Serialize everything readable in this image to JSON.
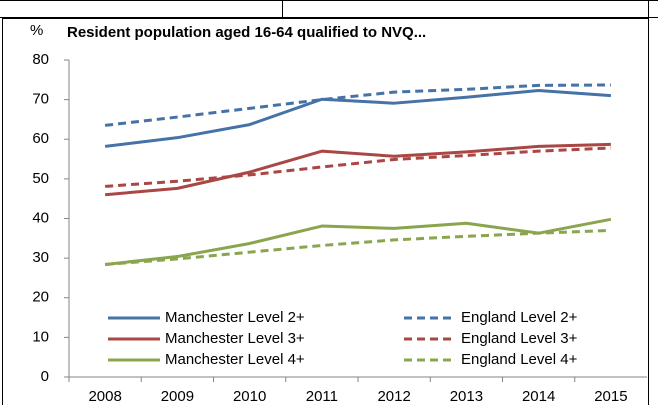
{
  "chart_data": {
    "type": "line",
    "title": "Resident population aged 16-64 qualified to NVQ...",
    "ylabel": "%",
    "categories": [
      "2008",
      "2009",
      "2010",
      "2011",
      "2012",
      "2013",
      "2014",
      "2015"
    ],
    "series": [
      {
        "name": "Manchester Level 2+",
        "color": "#4572a7",
        "dashed": false,
        "values": [
          58.2,
          60.4,
          63.7,
          70.1,
          69.1,
          70.6,
          72.3,
          71.0
        ]
      },
      {
        "name": "England Level 2+",
        "color": "#4572a7",
        "dashed": true,
        "values": [
          63.5,
          65.6,
          67.8,
          70.0,
          71.9,
          72.6,
          73.6,
          73.7
        ]
      },
      {
        "name": "Manchester Level 3+",
        "color": "#aa4643",
        "dashed": false,
        "values": [
          46.0,
          47.6,
          51.7,
          57.0,
          55.7,
          56.8,
          58.2,
          58.7
        ]
      },
      {
        "name": "England Level 3+",
        "color": "#aa4643",
        "dashed": true,
        "values": [
          48.1,
          49.4,
          51.0,
          53.0,
          54.9,
          55.9,
          57.0,
          57.8
        ]
      },
      {
        "name": "Manchester Level 4+",
        "color": "#89a54e",
        "dashed": false,
        "values": [
          28.4,
          30.4,
          33.7,
          38.1,
          37.5,
          38.8,
          36.3,
          39.8
        ]
      },
      {
        "name": "England Level 4+",
        "color": "#89a54e",
        "dashed": true,
        "values": [
          28.4,
          29.8,
          31.5,
          33.2,
          34.6,
          35.5,
          36.3,
          37.0
        ]
      }
    ],
    "ylim": [
      0,
      80
    ],
    "yticks": [
      0,
      10,
      20,
      30,
      40,
      50,
      60,
      70,
      80
    ],
    "grid": false,
    "legend": "bottom"
  }
}
